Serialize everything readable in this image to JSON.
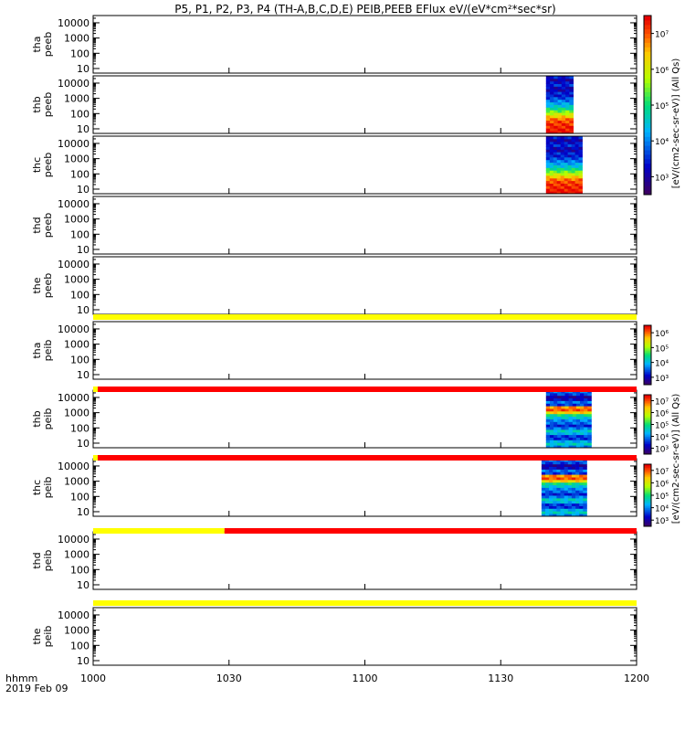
{
  "chart_data": {
    "type": "heatmap",
    "title": "P5, P1, P2, P3, P4 (TH-A,B,C,D,E) PEIB,PEEB EFlux eV/(eV*cm²*sec*sr)",
    "xlabel": "hhmm",
    "date_label": "2019 Feb 09",
    "x_ticks": [
      "1000",
      "1030",
      "1100",
      "1130",
      "1200"
    ],
    "x_range": [
      "10:00",
      "12:00"
    ],
    "y_scale": "log",
    "y_ticks": [
      "10",
      "100",
      "1000",
      "10000"
    ],
    "ylim": [
      5,
      30000
    ],
    "colorbar_unit_peeb": "[eV/(cm2-sec-sr-eV)] (All Qs)",
    "colorbar_unit_peib": "[eV/(cm2-sec-sr-eV)] (All Qs)",
    "colorbar_peeb_ticks": [
      "10³",
      "10⁴",
      "10⁵",
      "10⁶",
      "10⁷"
    ],
    "colorbar_peib_ticks": [
      "10³",
      "10⁴",
      "10⁵",
      "10⁶"
    ],
    "panels": [
      {
        "label": "tha\npeeb",
        "data_window": null
      },
      {
        "label": "thb\npeeb",
        "data_window": [
          "11:40",
          "11:46"
        ],
        "profile": "electron"
      },
      {
        "label": "thc\npeeb",
        "data_window": [
          "11:40",
          "11:48"
        ],
        "profile": "electron"
      },
      {
        "label": "thd\npeeb",
        "data_window": null
      },
      {
        "label": "the\npeeb",
        "data_window": null
      },
      {
        "label": "tha\npeib",
        "data_window": null
      },
      {
        "label": "thb\npeib",
        "data_window": [
          "11:40",
          "11:50"
        ],
        "profile": "ion"
      },
      {
        "label": "thc\npeib",
        "data_window": [
          "11:39",
          "11:49"
        ],
        "profile": "ion"
      },
      {
        "label": "thd\npeib",
        "data_window": null
      },
      {
        "label": "the\npeib",
        "data_window": null
      }
    ],
    "status_bars": [
      {
        "after_panel": 4,
        "segments": [
          {
            "from": "10:00",
            "to": "12:00",
            "color": "#ffff00"
          }
        ]
      },
      {
        "after_panel": 5,
        "segments": [
          {
            "from": "10:00",
            "to": "10:01",
            "color": "#ffff00"
          },
          {
            "from": "10:01",
            "to": "12:00",
            "color": "#ff0000"
          }
        ]
      },
      {
        "after_panel": 6,
        "segments": [
          {
            "from": "10:00",
            "to": "10:01",
            "color": "#ffff00"
          },
          {
            "from": "10:01",
            "to": "12:00",
            "color": "#ff0000"
          }
        ]
      },
      {
        "after_panel": 7,
        "segments": [
          {
            "from": "10:00",
            "to": "10:29",
            "color": "#ffff00"
          },
          {
            "from": "10:29",
            "to": "12:00",
            "color": "#ff0000"
          }
        ]
      },
      {
        "after_panel": 8,
        "segments": [
          {
            "from": "10:00",
            "to": "12:00",
            "color": "#ffff00"
          }
        ]
      }
    ]
  }
}
